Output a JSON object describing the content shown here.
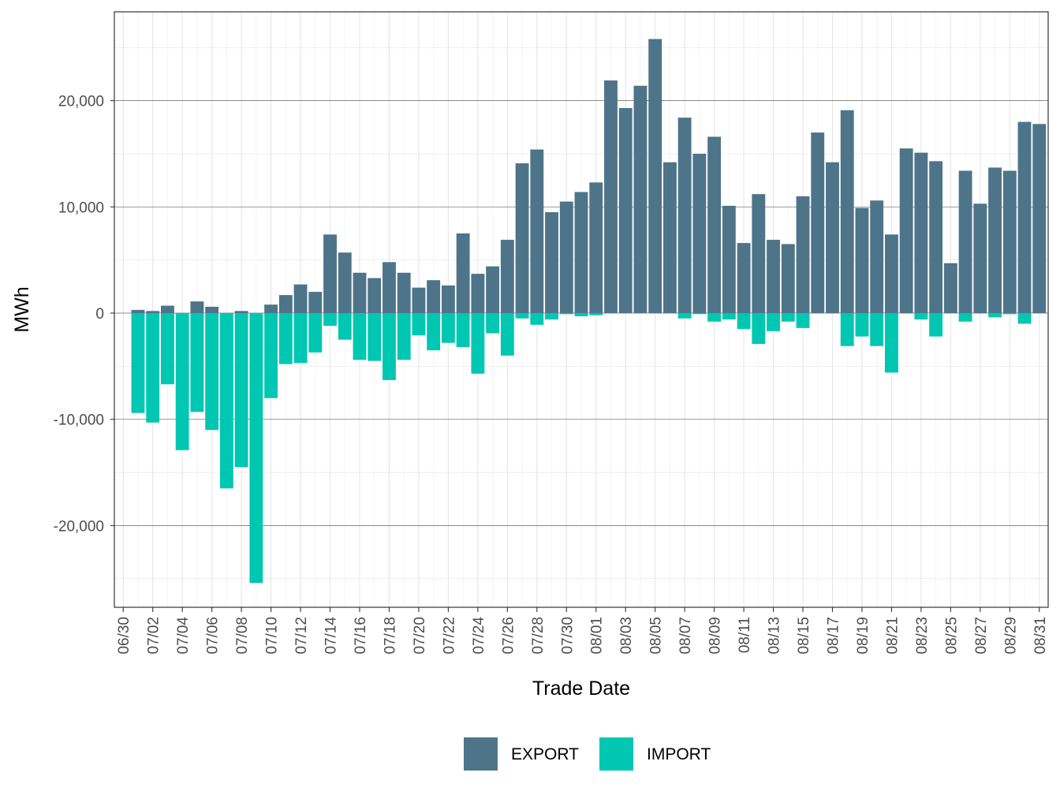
{
  "chart_data": {
    "type": "bar",
    "stacked": "diverging",
    "xlabel": "Trade Date",
    "ylabel": "MWh",
    "ylim": [
      -27500,
      28000
    ],
    "yticks": [
      -20000,
      -10000,
      0,
      10000,
      20000
    ],
    "ytick_labels": [
      "-20,000",
      "-10,000",
      "0",
      "10,000",
      "20,000"
    ],
    "grid": true,
    "legend_position": "bottom",
    "categories": [
      "06/30",
      "07/01",
      "07/02",
      "07/03",
      "07/04",
      "07/05",
      "07/06",
      "07/07",
      "07/08",
      "07/09",
      "07/10",
      "07/11",
      "07/12",
      "07/13",
      "07/14",
      "07/15",
      "07/16",
      "07/17",
      "07/18",
      "07/19",
      "07/20",
      "07/21",
      "07/22",
      "07/23",
      "07/24",
      "07/25",
      "07/26",
      "07/27",
      "07/28",
      "07/29",
      "07/30",
      "07/31",
      "08/01",
      "08/02",
      "08/03",
      "08/04",
      "08/05",
      "08/06",
      "08/07",
      "08/08",
      "08/09",
      "08/10",
      "08/11",
      "08/12",
      "08/13",
      "08/14",
      "08/15",
      "08/16",
      "08/17",
      "08/18",
      "08/19",
      "08/20",
      "08/21",
      "08/22",
      "08/23",
      "08/24",
      "08/25",
      "08/26",
      "08/27",
      "08/28",
      "08/29",
      "08/30",
      "08/31"
    ],
    "xtick_labels": [
      "06/30",
      "07/02",
      "07/04",
      "07/06",
      "07/08",
      "07/10",
      "07/12",
      "07/14",
      "07/16",
      "07/18",
      "07/20",
      "07/22",
      "07/24",
      "07/26",
      "07/28",
      "07/30",
      "08/01",
      "08/03",
      "08/05",
      "08/07",
      "08/09",
      "08/11",
      "08/13",
      "08/15",
      "08/17",
      "08/19",
      "08/21",
      "08/23",
      "08/25",
      "08/27",
      "08/29",
      "08/31"
    ],
    "series": [
      {
        "name": "EXPORT",
        "color": "#4E7489",
        "values": [
          0,
          300,
          200,
          700,
          0,
          1100,
          600,
          0,
          200,
          0,
          800,
          1700,
          2700,
          2000,
          7400,
          5700,
          3800,
          3300,
          4800,
          3800,
          2400,
          3100,
          2600,
          7500,
          3700,
          4400,
          6900,
          14100,
          15400,
          9500,
          10500,
          11400,
          12300,
          21900,
          19300,
          21400,
          25800,
          14200,
          18400,
          15000,
          16600,
          10100,
          6600,
          11200,
          6900,
          6500,
          11000,
          17000,
          14200,
          19100,
          9900,
          10600,
          7400,
          15500,
          15100,
          14300,
          4700,
          13400,
          10300,
          13700,
          13400,
          18000,
          17800
        ]
      },
      {
        "name": "IMPORT",
        "color": "#00C7B1",
        "values": [
          0,
          -9400,
          -10300,
          -6700,
          -12900,
          -9300,
          -11000,
          -16500,
          -14500,
          -25400,
          -8000,
          -4800,
          -4700,
          -3700,
          -1200,
          -2500,
          -4400,
          -4500,
          -6300,
          -4400,
          -2100,
          -3500,
          -2800,
          -3200,
          -5700,
          -1900,
          -4000,
          -500,
          -1100,
          -600,
          -100,
          -300,
          -200,
          0,
          0,
          0,
          0,
          0,
          -500,
          -100,
          -800,
          -600,
          -1500,
          -2900,
          -1700,
          -800,
          -1400,
          0,
          0,
          -3100,
          -2200,
          -3100,
          -5600,
          0,
          -600,
          -2200,
          0,
          -800,
          0,
          -400,
          -100,
          -1000,
          0
        ]
      }
    ]
  }
}
